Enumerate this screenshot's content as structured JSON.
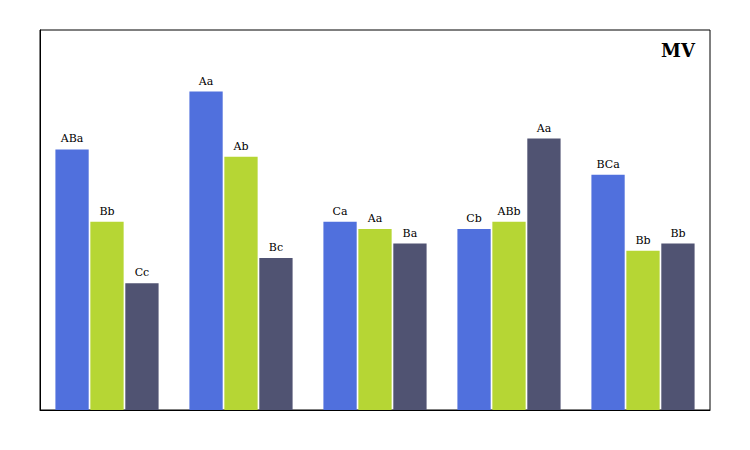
{
  "chart_data": {
    "type": "bar",
    "title": "MV",
    "categories": [
      null,
      null,
      null,
      null,
      null
    ],
    "series": [
      {
        "values": [
          0.72,
          0.88,
          0.52,
          0.5,
          0.65
        ],
        "labels": [
          "ABa",
          "Aa",
          "Ca",
          "Cb",
          "BCa"
        ]
      },
      {
        "values": [
          0.52,
          0.7,
          0.5,
          0.52,
          0.44
        ],
        "labels": [
          "Bb",
          "Ab",
          "Aa",
          "ABb",
          "Bb"
        ]
      },
      {
        "values": [
          0.35,
          0.42,
          0.46,
          0.75,
          0.46
        ],
        "labels": [
          "Cc",
          "Bc",
          "Ba",
          "Aa",
          "Bb"
        ]
      }
    ],
    "ylim": [
      0,
      1.05
    ],
    "tick_labels": false,
    "grid": false
  }
}
